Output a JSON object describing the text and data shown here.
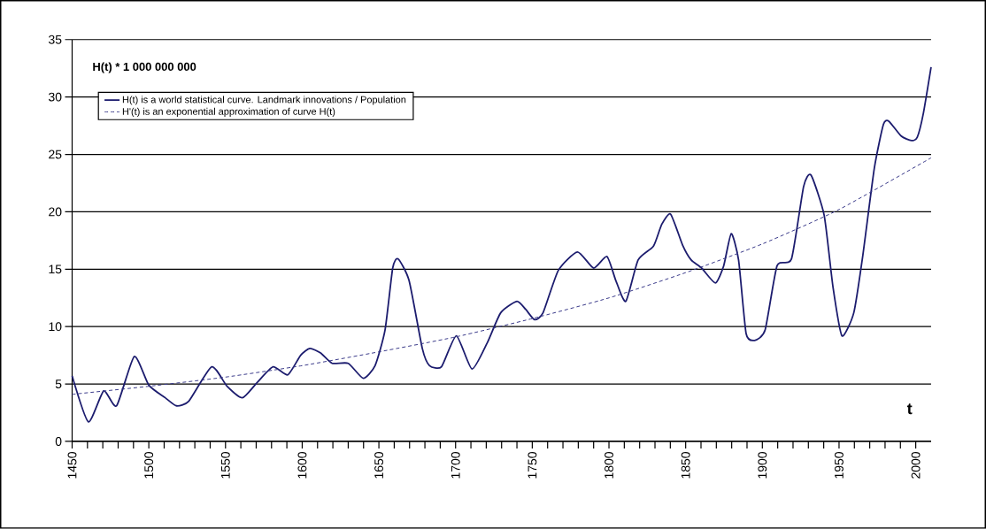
{
  "chart_data": {
    "type": "line",
    "annotations": [
      "H(t) * 1 000 000 000",
      "t"
    ],
    "xlim": [
      1450,
      2010
    ],
    "xticks": [
      1450,
      1500,
      1550,
      1600,
      1650,
      1700,
      1750,
      1800,
      1850,
      1900,
      1950,
      2000
    ],
    "ylim": [
      0,
      35
    ],
    "yticks": [
      0,
      5,
      10,
      15,
      20,
      25,
      30,
      35
    ],
    "grid": "y",
    "legend": "top left",
    "marker": "none",
    "series": [
      {
        "name": "H(t) is a world statistical curve. Landmark innovations / Population",
        "color": "#1c1c6e",
        "line_style": "solid",
        "x": [
          1450,
          1460.6,
          1470.6,
          1479,
          1490.5,
          1500,
          1510.7,
          1518,
          1526,
          1541,
          1551,
          1561,
          1570.4,
          1581,
          1590.6,
          1599,
          1605,
          1612,
          1619.5,
          1630,
          1639.8,
          1647.5,
          1654,
          1659,
          1662.5,
          1669.7,
          1678.3,
          1683,
          1690.8,
          1700.5,
          1710.7,
          1720.7,
          1729.4,
          1740,
          1745.7,
          1751.5,
          1757,
          1767,
          1779.5,
          1790,
          1798.7,
          1804.5,
          1811,
          1819,
          1829,
          1834.4,
          1840.2,
          1848,
          1853.6,
          1860.4,
          1869.4,
          1874.8,
          1879.7,
          1884.5,
          1889.4,
          1895,
          1901.8,
          1909.6,
          1919,
          1926.9,
          1931.7,
          1940.3,
          1946,
          1951.9,
          1959.6,
          1965.4,
          1973,
          1978.9,
          1982.4,
          1990.5,
          1997.2,
          2001,
          2005,
          2010
        ],
        "values": [
          5.7,
          1.7,
          4.4,
          3.1,
          7.4,
          4.9,
          3.8,
          3.1,
          3.5,
          6.5,
          4.8,
          3.8,
          5.1,
          6.5,
          5.8,
          7.5,
          8.1,
          7.7,
          6.8,
          6.8,
          5.5,
          6.6,
          9.7,
          15.1,
          15.9,
          14.0,
          8.1,
          6.6,
          6.5,
          9.2,
          6.3,
          8.6,
          11.2,
          12.2,
          11.5,
          10.6,
          11.2,
          14.9,
          16.5,
          15.1,
          16.1,
          14.0,
          12.2,
          15.8,
          17,
          18.9,
          19.8,
          17.1,
          15.8,
          15.1,
          13.8,
          15.3,
          18.1,
          15.8,
          9.4,
          8.8,
          9.7,
          15.3,
          15.9,
          22.2,
          23.2,
          19.7,
          13.5,
          9.2,
          11.2,
          16.1,
          23.8,
          27.6,
          27.9,
          26.6,
          26.2,
          26.5,
          28.6,
          32.6
        ]
      },
      {
        "name": "H'(t) is an exponential approximation of curve H(t)",
        "color": "#3a3a8a",
        "line_style": "dashed",
        "x": [
          1450,
          1500,
          1550,
          1600,
          1650,
          1700,
          1750,
          1800,
          1850,
          1900,
          1950,
          2010
        ],
        "values": [
          4.1,
          4.8,
          5.6,
          6.6,
          7.8,
          9.1,
          10.7,
          12.5,
          14.7,
          17.2,
          20.2,
          24.7
        ]
      }
    ]
  }
}
